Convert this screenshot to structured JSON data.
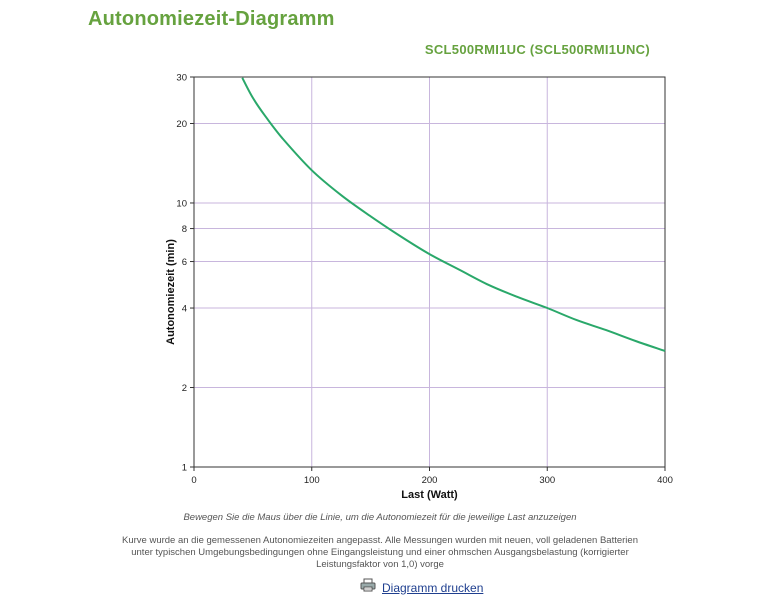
{
  "page": {
    "title": "Autonomiezeit-Diagramm",
    "hint": "Bewegen Sie die Maus über die Linie, um die Autonomiezeit für die jeweilige Last anzuzeigen",
    "note_lines": [
      "Kurve wurde an die gemessenen Autonomiezeiten angepasst. Alle Messungen wurden mit neuen, voll geladenen Batterien",
      "unter typischen Umgebungsbedingungen ohne Eingangsleistung und einer ohmschen Ausgangsbelastung (korrigierter",
      "Leistungsfaktor von 1,0) vorge"
    ],
    "print_label": "Diagramm drucken"
  },
  "chart_data": {
    "type": "line",
    "title": "",
    "subtitle": "SCL500RMI1UC (SCL500RMI1UNC)",
    "xlabel": "Last (Watt)",
    "ylabel": "Autonomiezeit (min)",
    "xlim": [
      0,
      400
    ],
    "ylim": [
      1,
      30
    ],
    "y_scale": "log",
    "x_ticks": [
      0,
      100,
      200,
      300,
      400
    ],
    "y_ticks": [
      1,
      2,
      4,
      6,
      8,
      10,
      20,
      30
    ],
    "grid": true,
    "legend": "none",
    "colors": {
      "line": "#2aa86a",
      "grid": "#c8b6dd",
      "title": "#66a23f"
    },
    "series": [
      {
        "x": [
          41,
          50,
          60,
          75,
          100,
          125,
          150,
          175,
          200,
          225,
          250,
          275,
          300,
          325,
          350,
          375,
          400
        ],
        "y": [
          29.8,
          25.0,
          21.5,
          17.6,
          13.3,
          10.7,
          8.9,
          7.5,
          6.4,
          5.6,
          4.9,
          4.4,
          4.0,
          3.6,
          3.3,
          3.0,
          2.75
        ]
      }
    ]
  }
}
